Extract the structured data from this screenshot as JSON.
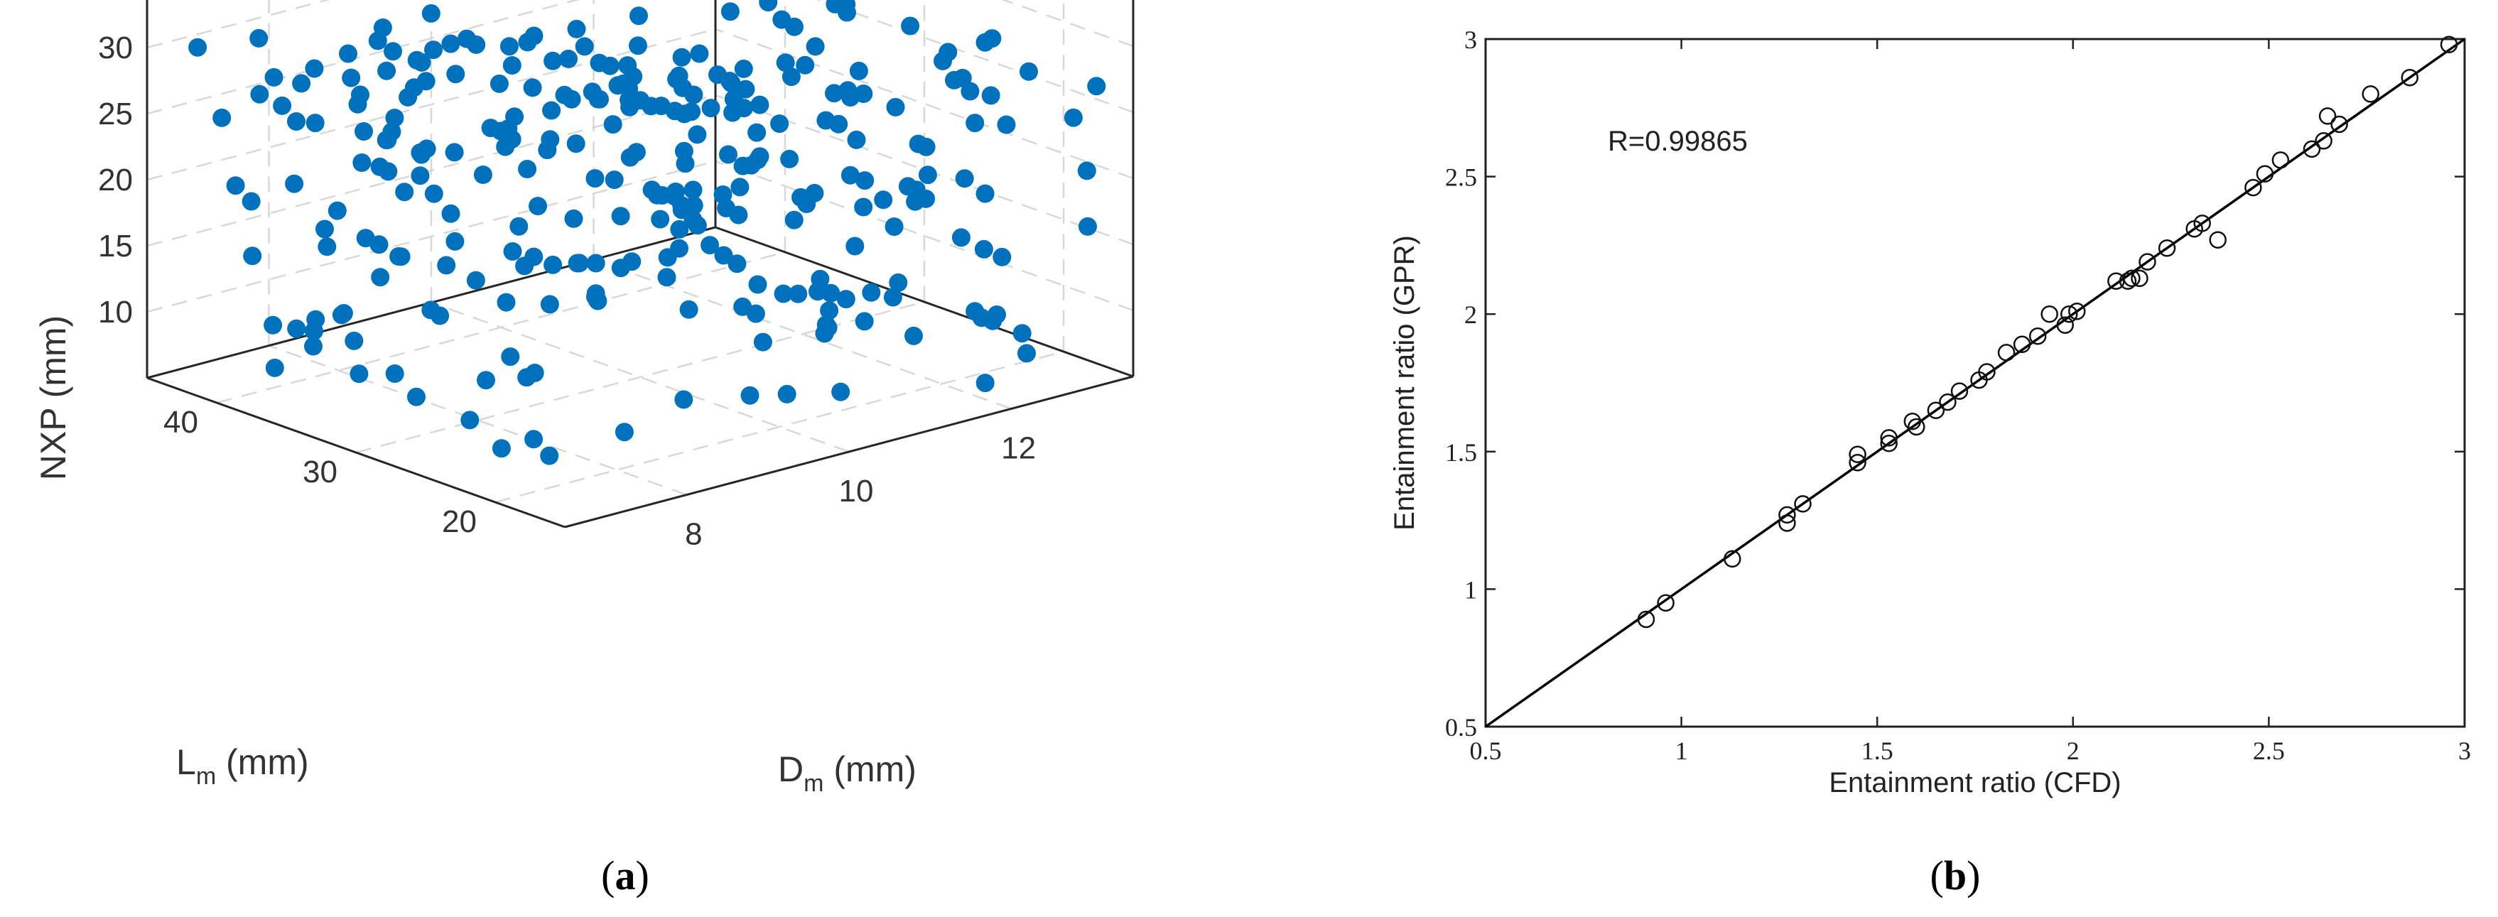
{
  "chart_data": [
    {
      "type": "scatter3d",
      "panel_label": {
        "open": "(",
        "letter": "a",
        "close": ")"
      },
      "marker_color": "#0072BD",
      "axes": {
        "x": {
          "label": "D",
          "label_sub": "m",
          "label_unit": " (mm)",
          "ticks": [
            "8",
            "10",
            "12"
          ],
          "range": [
            6.5,
            13.5
          ]
        },
        "y": {
          "label": "L",
          "label_sub": "m",
          "label_unit": " (mm)",
          "ticks": [
            "20",
            "30",
            "40"
          ],
          "range": [
            15,
            45
          ]
        },
        "z": {
          "label": "NXP (mm)",
          "ticks": [
            "10",
            "15",
            "20",
            "25",
            "30"
          ],
          "range": [
            5,
            35
          ]
        }
      },
      "point_count": 300,
      "grid": true,
      "box": "3d"
    },
    {
      "type": "scatter",
      "panel_label": {
        "open": "(",
        "letter": "b",
        "close": ")"
      },
      "title": "",
      "xlabel": "Entainment ratio (CFD)",
      "ylabel": "Entainment ratio (GPR)",
      "xlim": [
        0.5,
        3
      ],
      "ylim": [
        0.5,
        3
      ],
      "xticks": [
        "0.5",
        "1",
        "1.5",
        "2",
        "2.5",
        "3"
      ],
      "yticks": [
        "0.5",
        "1",
        "1.5",
        "2",
        "2.5",
        "3"
      ],
      "annotation": "R=0.99865",
      "marker": "open-circle",
      "fit_line": {
        "from": [
          0.5,
          0.5
        ],
        "to": [
          3,
          3
        ]
      },
      "grid": false,
      "points": [
        [
          0.91,
          0.89
        ],
        [
          0.96,
          0.95
        ],
        [
          1.13,
          1.11
        ],
        [
          1.27,
          1.24
        ],
        [
          1.27,
          1.27
        ],
        [
          1.31,
          1.31
        ],
        [
          1.45,
          1.46
        ],
        [
          1.45,
          1.49
        ],
        [
          1.53,
          1.53
        ],
        [
          1.53,
          1.55
        ],
        [
          1.59,
          1.61
        ],
        [
          1.6,
          1.59
        ],
        [
          1.65,
          1.65
        ],
        [
          1.68,
          1.68
        ],
        [
          1.71,
          1.72
        ],
        [
          1.76,
          1.76
        ],
        [
          1.78,
          1.79
        ],
        [
          1.83,
          1.86
        ],
        [
          1.87,
          1.89
        ],
        [
          1.91,
          1.92
        ],
        [
          1.94,
          2.0
        ],
        [
          1.98,
          1.96
        ],
        [
          1.99,
          2.0
        ],
        [
          2.01,
          2.01
        ],
        [
          2.11,
          2.12
        ],
        [
          2.14,
          2.12
        ],
        [
          2.15,
          2.13
        ],
        [
          2.17,
          2.13
        ],
        [
          2.19,
          2.19
        ],
        [
          2.24,
          2.24
        ],
        [
          2.31,
          2.31
        ],
        [
          2.33,
          2.33
        ],
        [
          2.37,
          2.27
        ],
        [
          2.46,
          2.46
        ],
        [
          2.49,
          2.51
        ],
        [
          2.53,
          2.56
        ],
        [
          2.61,
          2.6
        ],
        [
          2.64,
          2.63
        ],
        [
          2.65,
          2.72
        ],
        [
          2.68,
          2.69
        ],
        [
          2.76,
          2.8
        ],
        [
          2.86,
          2.86
        ],
        [
          2.96,
          2.98
        ]
      ]
    }
  ]
}
